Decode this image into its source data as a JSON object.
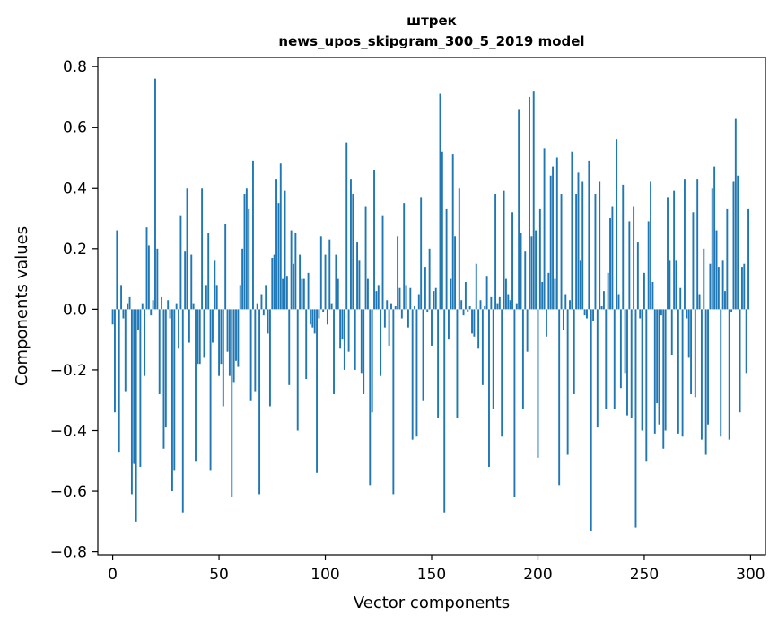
{
  "chart_data": {
    "type": "bar",
    "title_line1": "штрек",
    "title_line2": "news_upos_skipgram_300_5_2019 model",
    "xlabel": "Vector components",
    "ylabel": "Components values",
    "xlim": [
      -7,
      307
    ],
    "ylim": [
      -0.81,
      0.83
    ],
    "xticks": [
      0,
      50,
      100,
      150,
      200,
      250,
      300
    ],
    "yticks": [
      -0.8,
      -0.6,
      -0.4,
      -0.2,
      0.0,
      0.2,
      0.4,
      0.6,
      0.8
    ],
    "xtick_labels": [
      "0",
      "50",
      "100",
      "150",
      "200",
      "250",
      "300"
    ],
    "ytick_labels": [
      "−0.8",
      "−0.6",
      "−0.4",
      "−0.2",
      "0.0",
      "0.2",
      "0.4",
      "0.6",
      "0.8"
    ],
    "bar_color": "#1f77b4",
    "values": [
      -0.05,
      -0.34,
      0.26,
      -0.47,
      0.08,
      -0.03,
      -0.27,
      0.02,
      0.04,
      -0.61,
      -0.51,
      -0.7,
      -0.07,
      -0.52,
      0.02,
      -0.22,
      0.27,
      0.21,
      -0.02,
      0.03,
      0.76,
      0.2,
      -0.28,
      0.04,
      -0.46,
      -0.39,
      0.03,
      -0.03,
      -0.6,
      -0.53,
      0.02,
      -0.13,
      0.31,
      -0.67,
      0.19,
      0.4,
      -0.11,
      0.18,
      0.02,
      -0.5,
      -0.18,
      -0.18,
      0.4,
      -0.16,
      0.08,
      0.25,
      -0.53,
      -0.11,
      0.16,
      0.08,
      -0.22,
      -0.18,
      -0.32,
      0.28,
      -0.14,
      -0.22,
      -0.62,
      -0.24,
      -0.17,
      -0.19,
      0.08,
      0.2,
      0.38,
      0.4,
      0.33,
      -0.3,
      0.49,
      -0.27,
      0.02,
      -0.61,
      0.05,
      -0.02,
      0.08,
      -0.08,
      -0.32,
      0.17,
      0.18,
      0.43,
      0.35,
      0.48,
      0.1,
      0.39,
      0.11,
      -0.25,
      0.26,
      0.15,
      0.25,
      -0.4,
      0.18,
      0.1,
      0.1,
      -0.23,
      0.12,
      -0.05,
      -0.06,
      -0.08,
      -0.54,
      -0.03,
      0.24,
      -0.01,
      0.18,
      -0.05,
      0.23,
      0.02,
      -0.28,
      0.18,
      0.1,
      -0.13,
      -0.1,
      -0.2,
      0.55,
      -0.14,
      0.43,
      0.38,
      -0.2,
      0.22,
      0.16,
      -0.21,
      -0.28,
      0.34,
      0.1,
      -0.58,
      -0.34,
      0.46,
      0.06,
      0.08,
      -0.22,
      0.31,
      -0.06,
      0.03,
      -0.12,
      0.02,
      -0.61,
      0.01,
      0.24,
      0.07,
      -0.03,
      0.35,
      0.08,
      -0.06,
      0.07,
      -0.43,
      0.01,
      -0.42,
      0.05,
      0.37,
      -0.3,
      0.14,
      -0.01,
      0.2,
      -0.12,
      0.06,
      0.07,
      -0.36,
      0.71,
      0.52,
      -0.67,
      0.33,
      -0.1,
      0.1,
      0.51,
      0.24,
      -0.36,
      0.4,
      0.03,
      -0.02,
      0.09,
      -0.01,
      0.01,
      -0.08,
      -0.09,
      0.15,
      -0.13,
      0.03,
      -0.25,
      0.01,
      0.11,
      -0.52,
      0.04,
      -0.33,
      0.38,
      0.02,
      0.04,
      -0.42,
      0.39,
      0.1,
      0.05,
      0.03,
      0.32,
      -0.62,
      0.02,
      0.66,
      0.25,
      -0.33,
      0.19,
      -0.14,
      0.7,
      0.24,
      0.72,
      0.26,
      -0.49,
      0.33,
      0.09,
      0.53,
      -0.09,
      0.12,
      0.44,
      0.47,
      0.1,
      0.5,
      -0.58,
      0.38,
      -0.07,
      0.05,
      -0.48,
      0.03,
      0.52,
      -0.28,
      0.38,
      0.45,
      0.16,
      0.42,
      -0.02,
      -0.03,
      0.49,
      -0.73,
      -0.04,
      0.38,
      -0.39,
      0.42,
      0.01,
      0.06,
      -0.33,
      0.12,
      0.3,
      0.34,
      -0.33,
      0.56,
      0.05,
      -0.26,
      0.41,
      -0.21,
      -0.35,
      0.29,
      -0.36,
      0.34,
      -0.72,
      0.22,
      -0.03,
      -0.4,
      0.12,
      -0.5,
      0.29,
      0.42,
      0.09,
      -0.41,
      -0.31,
      -0.38,
      -0.02,
      -0.46,
      -0.4,
      0.37,
      0.16,
      -0.15,
      0.39,
      0.16,
      -0.41,
      0.07,
      -0.42,
      0.43,
      -0.03,
      -0.16,
      -0.28,
      0.32,
      -0.29,
      0.43,
      0.05,
      -0.43,
      0.2,
      -0.48,
      -0.38,
      0.15,
      0.4,
      0.47,
      0.26,
      0.14,
      -0.42,
      0.16,
      0.06,
      0.33,
      -0.43,
      -0.01,
      0.42,
      0.63,
      0.44,
      -0.34,
      0.14,
      0.15,
      -0.21,
      0.33
    ]
  }
}
